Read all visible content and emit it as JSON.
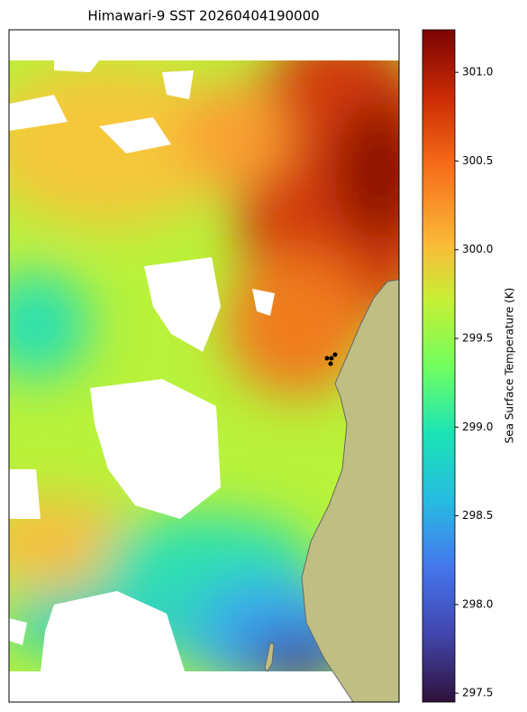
{
  "chart_data": {
    "type": "heatmap",
    "title": "Himawari-9 SST 20260404190000",
    "colorbar_label": "Sea Surface Temperature (K)",
    "clim": [
      297.45,
      301.24
    ],
    "cticks": [
      297.5,
      {
        "value": 298.0,
        "label": "298.0"
      },
      298.5,
      {
        "value": 299.0,
        "label": "299.0"
      },
      299.5,
      {
        "value": 300.0,
        "label": "300.0"
      },
      300.5,
      {
        "value": 301.0,
        "label": "301.0"
      }
    ]
  }
}
